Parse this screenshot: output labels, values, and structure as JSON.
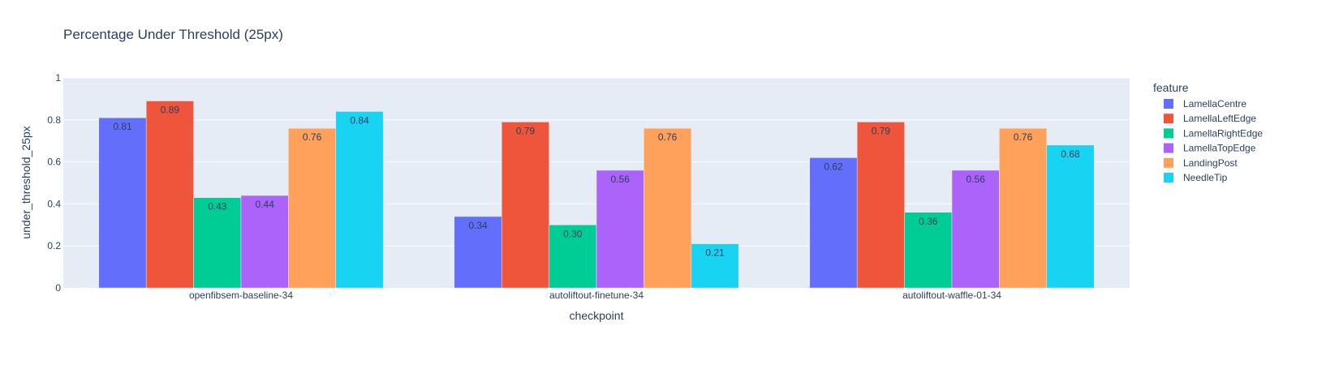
{
  "chart_data": {
    "type": "bar",
    "title": "Percentage Under Threshold (25px)",
    "xlabel": "checkpoint",
    "ylabel": "under_threshold_25px",
    "ylim": [
      0,
      1
    ],
    "yticks": [
      "0",
      "0.2",
      "0.4",
      "0.6",
      "0.8",
      "1"
    ],
    "grid": true,
    "legend_title": "feature",
    "legend_position": "right",
    "categories": [
      "openfibsem-baseline-34",
      "autoliftout-finetune-34",
      "autoliftout-waffle-01-34"
    ],
    "series": [
      {
        "name": "LamellaCentre",
        "color": "#636efa",
        "values": [
          0.81,
          0.34,
          0.62
        ],
        "labels": [
          "0.81",
          "0.34",
          "0.62"
        ]
      },
      {
        "name": "LamellaLeftEdge",
        "color": "#ef553b",
        "values": [
          0.89,
          0.79,
          0.79
        ],
        "labels": [
          "0.89",
          "0.79",
          "0.79"
        ]
      },
      {
        "name": "LamellaRightEdge",
        "color": "#00cc96",
        "values": [
          0.43,
          0.3,
          0.36
        ],
        "labels": [
          "0.43",
          "0.30",
          "0.36"
        ]
      },
      {
        "name": "LamellaTopEdge",
        "color": "#ab63fa",
        "values": [
          0.44,
          0.56,
          0.56
        ],
        "labels": [
          "0.44",
          "0.56",
          "0.56"
        ]
      },
      {
        "name": "LandingPost",
        "color": "#ffa15a",
        "values": [
          0.76,
          0.76,
          0.76
        ],
        "labels": [
          "0.76",
          "0.76",
          "0.76"
        ]
      },
      {
        "name": "NeedleTip",
        "color": "#19d3f3",
        "values": [
          0.84,
          0.21,
          0.68
        ],
        "labels": [
          "0.84",
          "0.21",
          "0.68"
        ]
      }
    ]
  }
}
